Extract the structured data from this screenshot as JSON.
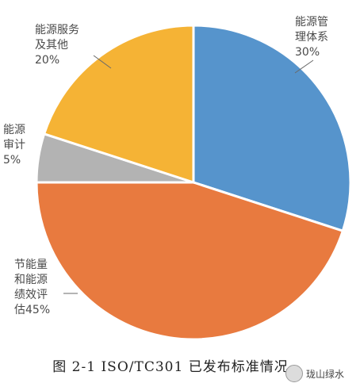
{
  "chart_data": {
    "type": "pie",
    "title": "",
    "slices": [
      {
        "label_lines": [
          "能源管",
          "理体系"
        ],
        "percent_label": "30%",
        "value": 30,
        "color": "#5694cc"
      },
      {
        "label_lines": [
          "节能量",
          "和能源",
          "绩效评",
          "估45%"
        ],
        "percent_label": "",
        "value": 45,
        "color": "#e87a3f"
      },
      {
        "label_lines": [
          "能源",
          "审计"
        ],
        "percent_label": "5%",
        "value": 5,
        "color": "#b3b3b3"
      },
      {
        "label_lines": [
          "能源服务",
          "及其他"
        ],
        "percent_label": "20%",
        "value": 20,
        "color": "#f5b335"
      }
    ]
  },
  "caption": "图 2-1 ISO/TC301 已发布标准情况",
  "watermark": {
    "text": "珑山绿水"
  }
}
